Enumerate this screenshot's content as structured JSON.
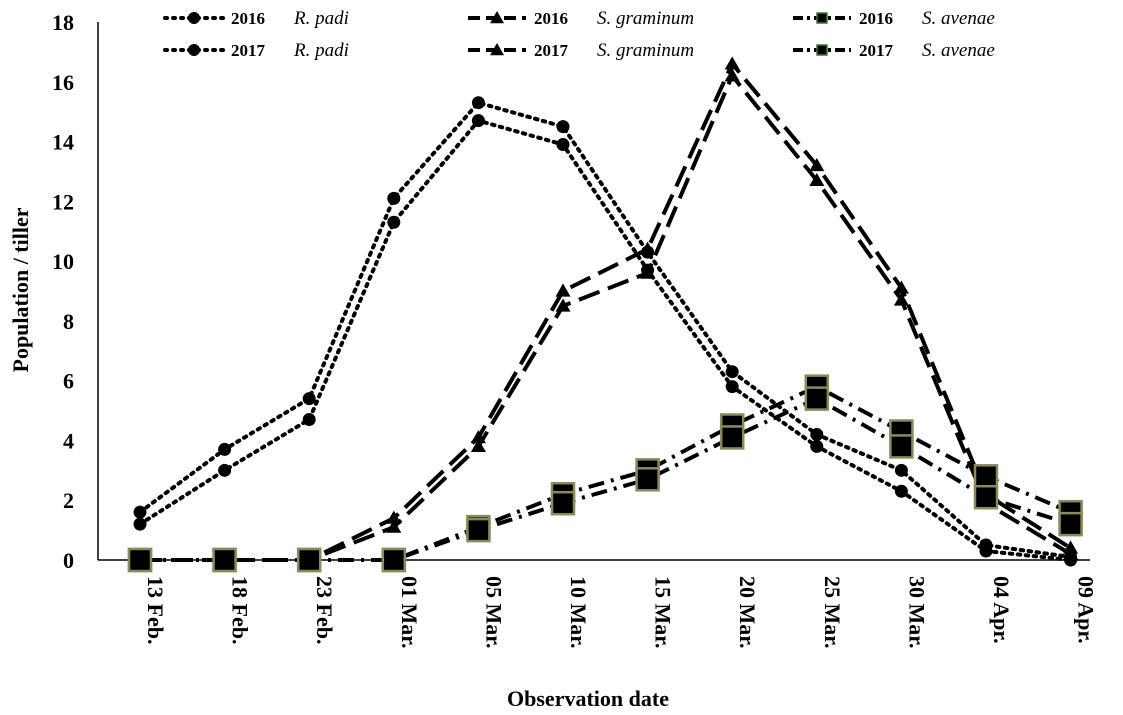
{
  "chart_data": {
    "type": "line",
    "xlabel": "Observation date",
    "ylabel": "Population / tiller",
    "ylim": [
      0,
      18
    ],
    "yticks": [
      "0",
      "2",
      "4",
      "6",
      "8",
      "10",
      "12",
      "14",
      "16",
      "18"
    ],
    "categories": [
      "13 Feb.",
      "18 Feb.",
      "23 Feb.",
      "01 Mar.",
      "05 Mar.",
      "10 Mar.",
      "15 Mar.",
      "20 Mar.",
      "25 Mar.",
      "30 Mar.",
      "04 Apr.",
      "09 Apr."
    ],
    "grid": false,
    "legend_position": "top",
    "series": [
      {
        "year": "2016",
        "species": "R. padi",
        "marker": "circle",
        "line": "dotted",
        "values": [
          1.6,
          3.7,
          5.4,
          12.1,
          15.3,
          14.5,
          10.3,
          6.3,
          4.2,
          3.0,
          0.5,
          0.1
        ]
      },
      {
        "year": "2017",
        "species": "R. padi",
        "marker": "circle",
        "line": "dotted",
        "values": [
          1.2,
          3.0,
          4.7,
          11.3,
          14.7,
          13.9,
          9.7,
          5.8,
          3.8,
          2.3,
          0.3,
          0.0
        ]
      },
      {
        "year": "2016",
        "species": "S. graminum",
        "marker": "triangle",
        "line": "dashed",
        "values": [
          0,
          0,
          0,
          1.4,
          4.1,
          9.0,
          10.4,
          16.6,
          13.2,
          9.1,
          2.2,
          0.4
        ]
      },
      {
        "year": "2017",
        "species": "S. graminum",
        "marker": "triangle",
        "line": "dashed",
        "values": [
          0,
          0,
          0,
          1.1,
          3.8,
          8.5,
          9.6,
          16.2,
          12.7,
          8.7,
          1.9,
          0.2
        ]
      },
      {
        "year": "2016",
        "species": "S. avenae",
        "marker": "square",
        "line": "dashdot",
        "values": [
          0,
          0,
          0,
          0,
          1.1,
          2.2,
          3.0,
          4.5,
          5.8,
          4.3,
          2.8,
          1.6
        ]
      },
      {
        "year": "2017",
        "species": "S. avenae",
        "marker": "square",
        "line": "dashdot",
        "values": [
          0,
          0,
          0,
          0,
          1.0,
          1.9,
          2.7,
          4.1,
          5.4,
          3.8,
          2.1,
          1.2
        ]
      }
    ]
  }
}
